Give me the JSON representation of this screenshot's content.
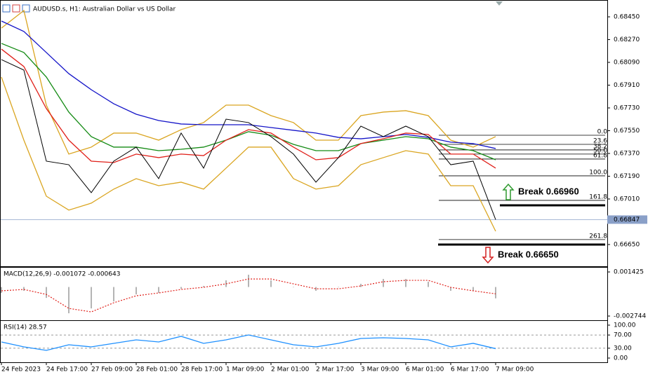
{
  "chart_data": [
    {
      "type": "line",
      "title": "AUDUSD.s, H1:  Australian Dollar vs US Dollar",
      "categories": [
        "24 Feb 2023",
        null,
        "24 Feb 17:00",
        null,
        "27 Feb 09:00",
        null,
        "28 Feb 01:00",
        null,
        "28 Feb 17:00",
        null,
        "1 Mar 09:00",
        null,
        "2 Mar 01:00",
        null,
        "2 Mar 17:00",
        null,
        "3 Mar 09:00",
        null,
        "6 Mar 01:00",
        null,
        "6 Mar 17:00",
        null,
        "7 Mar 09:00"
      ],
      "series": [
        {
          "color": "#daa520",
          "values": [
            0.68361,
            0.685,
            0.67752,
            0.67365,
            0.6742,
            0.67531,
            0.67531,
            0.67475,
            0.67558,
            0.67614,
            0.67752,
            0.67752,
            0.67669,
            0.67614,
            0.67475,
            0.67475,
            0.67669,
            0.67697,
            0.67708,
            0.67669,
            0.67475,
            0.6742,
            0.67503
          ]
        },
        {
          "color": "#daa520",
          "values": [
            0.67974,
            0.67475,
            0.67032,
            0.66922,
            0.66977,
            0.67088,
            0.67171,
            0.67115,
            0.67143,
            0.67088,
            0.67254,
            0.6742,
            0.6742,
            0.67171,
            0.67088,
            0.67115,
            0.67281,
            0.67337,
            0.67392,
            0.67365,
            0.67115,
            0.67115,
            0.66755
          ]
        },
        {
          "color": "#1414c8",
          "values": [
            0.68417,
            0.68334,
            0.68168,
            0.68001,
            0.67874,
            0.67763,
            0.6768,
            0.6763,
            0.67603,
            0.67597,
            0.67597,
            0.67597,
            0.67575,
            0.67553,
            0.67531,
            0.67497,
            0.67486,
            0.67503,
            0.6752,
            0.67497,
            0.67459,
            0.67448,
            0.67409
          ]
        },
        {
          "color": "#138a13",
          "values": [
            0.6824,
            0.68168,
            0.67974,
            0.67697,
            0.67503,
            0.6742,
            0.6742,
            0.67392,
            0.67403,
            0.6742,
            0.67475,
            0.67542,
            0.67514,
            0.67442,
            0.67392,
            0.67392,
            0.67448,
            0.67475,
            0.67503,
            0.67486,
            0.6742,
            0.67392,
            0.6732
          ]
        },
        {
          "color": "#e0201a",
          "values": [
            0.68195,
            0.68057,
            0.67725,
            0.67475,
            0.67309,
            0.67298,
            0.67365,
            0.67337,
            0.67365,
            0.67353,
            0.67475,
            0.67558,
            0.67531,
            0.6742,
            0.6732,
            0.67337,
            0.67448,
            0.67486,
            0.67531,
            0.6752,
            0.67365,
            0.67365,
            0.67254
          ]
        },
        {
          "color": "#000000",
          "values": [
            0.68112,
            0.68029,
            0.67309,
            0.67281,
            0.6706,
            0.67309,
            0.6742,
            0.67171,
            0.67531,
            0.67254,
            0.67641,
            0.67614,
            0.67503,
            0.67365,
            0.67143,
            0.67337,
            0.67586,
            0.67503,
            0.67586,
            0.67503,
            0.67281,
            0.67309,
            0.66847
          ]
        }
      ],
      "ylim": [
        0.66478,
        0.68572
      ],
      "yticks": [
        {
          "value": 0.6845,
          "label": "0.68450"
        },
        {
          "value": 0.6827,
          "label": "0.68270"
        },
        {
          "value": 0.6809,
          "label": "0.68090"
        },
        {
          "value": 0.6791,
          "label": "0.67910"
        },
        {
          "value": 0.6773,
          "label": "0.67730"
        },
        {
          "value": 0.6755,
          "label": "0.67550"
        },
        {
          "value": 0.6737,
          "label": "0.67370"
        },
        {
          "value": 0.6719,
          "label": "0.67190"
        },
        {
          "value": 0.6701,
          "label": "0.67010"
        },
        {
          "value": 0.6665,
          "label": "0.66650"
        }
      ],
      "current_price": {
        "value": 0.66847,
        "label": "0.66847"
      },
      "fib_levels": [
        {
          "value": 0.67514,
          "label": "0.0"
        },
        {
          "value": 0.67442,
          "label": "23.6"
        },
        {
          "value": 0.67398,
          "label": "38.2"
        },
        {
          "value": 0.67365,
          "label": "50.0"
        },
        {
          "value": 0.67326,
          "label": "61.8"
        },
        {
          "value": 0.67193,
          "label": "100.0"
        },
        {
          "value": 0.66999,
          "label": "161.8"
        },
        {
          "value": 0.66689,
          "label": "261.8"
        }
      ],
      "breaks": [
        {
          "value": 0.6696,
          "label": "Break 0.66960",
          "color": "#2e9a2e",
          "direction": "up"
        },
        {
          "value": 0.6665,
          "label": "Break 0.66650",
          "color": "#d42020",
          "direction": "down"
        }
      ]
    },
    {
      "type": "macd",
      "title": "MACD(12,26,9) -0.001072 -0.000643",
      "values": [
        -0.00056,
        -0.00036,
        -0.00103,
        -0.00248,
        -0.00202,
        -0.00136,
        -0.0007,
        -0.00056,
        -0.00017,
        0.0001,
        0.00063,
        0.00116,
        0.00063,
        -3e-05,
        -0.00036,
        -3e-05,
        0.0003,
        0.00076,
        0.00076,
        0.0005,
        -0.00036,
        -0.00036,
        -0.001072
      ],
      "color": "#b4b4b4",
      "signal": {
        "color": "#e0201a",
        "values": [
          -0.00036,
          -0.00023,
          -0.0007,
          -0.00202,
          -0.00235,
          -0.00149,
          -0.00083,
          -0.00056,
          -0.00023,
          -3e-05,
          0.0003,
          0.00076,
          0.00076,
          0.0003,
          -0.00017,
          -0.00017,
          0.0001,
          0.0005,
          0.00063,
          0.00063,
          -3e-05,
          -0.00036,
          -0.000643
        ]
      },
      "ylim": [
        -0.00314,
        0.00176
      ],
      "yticks": [
        {
          "value": 0.001425,
          "label": "0.001425"
        },
        {
          "value": -0.002744,
          "label": "-0.002744"
        }
      ]
    },
    {
      "type": "line",
      "title": "RSI(14) 28.57",
      "series": [
        {
          "color": "#1e90ff",
          "values": [
            48.9,
            34.0,
            23.4,
            40.4,
            34.0,
            44.7,
            55.3,
            48.9,
            66.0,
            44.7,
            55.3,
            70.2,
            55.3,
            40.4,
            34.0,
            44.7,
            59.6,
            61.7,
            59.6,
            55.3,
            34.0,
            44.7,
            28.57
          ]
        }
      ],
      "ylim": [
        -12.8,
        110.6
      ],
      "yticks": [
        {
          "value": 100,
          "label": "100.00"
        },
        {
          "value": 70,
          "label": "70.00"
        },
        {
          "value": 30,
          "label": "30.00"
        },
        {
          "value": 0,
          "label": "0.00"
        }
      ],
      "levels": [
        70,
        30
      ]
    }
  ]
}
